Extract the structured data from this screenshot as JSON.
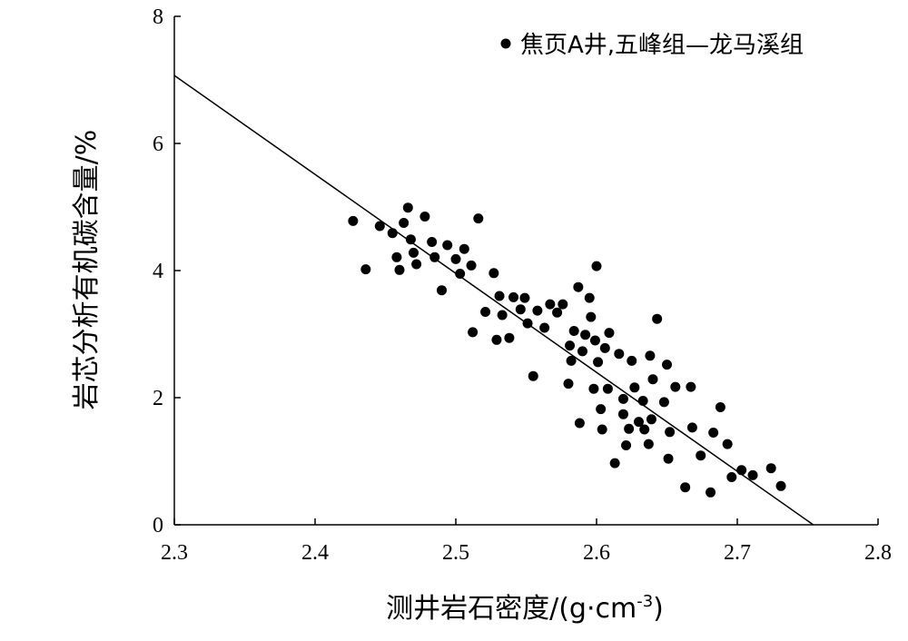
{
  "chart_data": {
    "type": "scatter",
    "xlabel": "测井岩石密度/(g·cm",
    "xlabel_sup": "-3",
    "xlabel_end": ")",
    "ylabel": "岩芯分析有机碳含量/%",
    "xlim": [
      2.3,
      2.8
    ],
    "ylim": [
      0,
      8
    ],
    "x_ticks": [
      2.3,
      2.4,
      2.5,
      2.6,
      2.7,
      2.8
    ],
    "y_ticks": [
      0,
      2,
      4,
      6,
      8
    ],
    "x_tick_labels": [
      "2.3",
      "2.4",
      "2.5",
      "2.6",
      "2.7",
      "2.8"
    ],
    "y_tick_labels": [
      "0",
      "2",
      "4",
      "6",
      "8"
    ],
    "grid": false,
    "legend_position": "top-right",
    "series": [
      {
        "name": "焦页A井,五峰组—龙马溪组",
        "marker": "filled-circle",
        "color": "#000000",
        "points": [
          [
            2.427,
            4.78
          ],
          [
            2.436,
            4.02
          ],
          [
            2.446,
            4.7
          ],
          [
            2.455,
            4.59
          ],
          [
            2.458,
            4.21
          ],
          [
            2.46,
            4.01
          ],
          [
            2.463,
            4.75
          ],
          [
            2.466,
            4.99
          ],
          [
            2.468,
            4.49
          ],
          [
            2.47,
            4.28
          ],
          [
            2.472,
            4.1
          ],
          [
            2.478,
            4.85
          ],
          [
            2.483,
            4.45
          ],
          [
            2.485,
            4.21
          ],
          [
            2.49,
            3.69
          ],
          [
            2.494,
            4.4
          ],
          [
            2.5,
            4.18
          ],
          [
            2.503,
            3.95
          ],
          [
            2.506,
            4.34
          ],
          [
            2.511,
            4.08
          ],
          [
            2.512,
            3.03
          ],
          [
            2.516,
            4.82
          ],
          [
            2.521,
            3.35
          ],
          [
            2.527,
            3.96
          ],
          [
            2.529,
            2.91
          ],
          [
            2.531,
            3.6
          ],
          [
            2.533,
            3.3
          ],
          [
            2.538,
            2.94
          ],
          [
            2.541,
            3.58
          ],
          [
            2.546,
            3.39
          ],
          [
            2.549,
            3.57
          ],
          [
            2.551,
            3.17
          ],
          [
            2.555,
            2.34
          ],
          [
            2.558,
            3.37
          ],
          [
            2.563,
            3.1
          ],
          [
            2.567,
            3.47
          ],
          [
            2.572,
            3.34
          ],
          [
            2.576,
            3.47
          ],
          [
            2.58,
            2.22
          ],
          [
            2.581,
            2.82
          ],
          [
            2.582,
            2.58
          ],
          [
            2.584,
            3.05
          ],
          [
            2.587,
            3.74
          ],
          [
            2.588,
            1.6
          ],
          [
            2.59,
            2.73
          ],
          [
            2.592,
            2.99
          ],
          [
            2.595,
            3.57
          ],
          [
            2.596,
            3.27
          ],
          [
            2.598,
            2.14
          ],
          [
            2.599,
            2.9
          ],
          [
            2.6,
            4.07
          ],
          [
            2.601,
            2.56
          ],
          [
            2.603,
            1.82
          ],
          [
            2.604,
            1.5
          ],
          [
            2.606,
            2.78
          ],
          [
            2.608,
            2.14
          ],
          [
            2.609,
            3.02
          ],
          [
            2.613,
            0.97
          ],
          [
            2.616,
            2.69
          ],
          [
            2.619,
            1.98
          ],
          [
            2.619,
            1.74
          ],
          [
            2.621,
            1.25
          ],
          [
            2.623,
            1.51
          ],
          [
            2.625,
            2.58
          ],
          [
            2.627,
            2.16
          ],
          [
            2.63,
            1.62
          ],
          [
            2.633,
            1.95
          ],
          [
            2.634,
            1.5
          ],
          [
            2.637,
            1.27
          ],
          [
            2.638,
            2.66
          ],
          [
            2.639,
            1.66
          ],
          [
            2.64,
            2.29
          ],
          [
            2.643,
            3.24
          ],
          [
            2.648,
            1.93
          ],
          [
            2.65,
            2.52
          ],
          [
            2.651,
            1.04
          ],
          [
            2.652,
            1.46
          ],
          [
            2.656,
            2.17
          ],
          [
            2.663,
            0.59
          ],
          [
            2.667,
            2.17
          ],
          [
            2.668,
            1.53
          ],
          [
            2.674,
            1.09
          ],
          [
            2.681,
            0.51
          ],
          [
            2.683,
            1.45
          ],
          [
            2.688,
            1.85
          ],
          [
            2.693,
            1.27
          ],
          [
            2.696,
            0.75
          ],
          [
            2.703,
            0.86
          ],
          [
            2.711,
            0.78
          ],
          [
            2.724,
            0.89
          ],
          [
            2.731,
            0.61
          ]
        ]
      }
    ],
    "trendline": {
      "type": "linear",
      "from": [
        2.3,
        7.07
      ],
      "to": [
        2.754,
        0.0
      ]
    }
  }
}
